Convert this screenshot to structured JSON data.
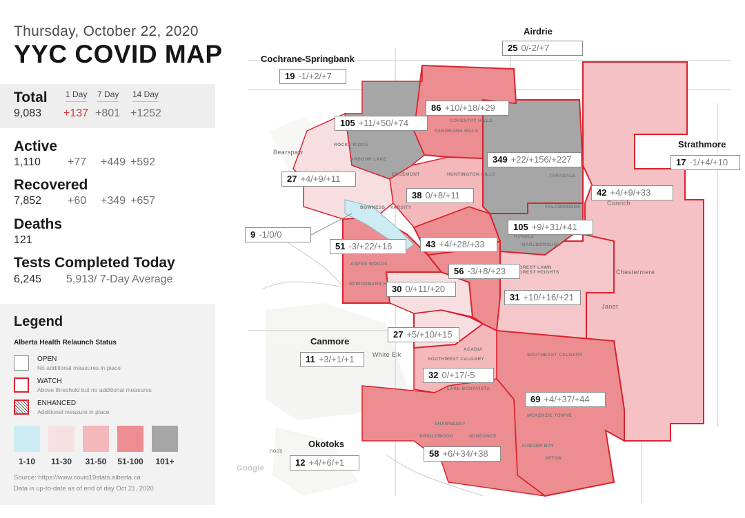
{
  "header": {
    "date": "Thursday, October 22, 2020",
    "title": "YYC COVID MAP"
  },
  "stats": {
    "headers": [
      "1 Day",
      "7 Day",
      "14 Day"
    ],
    "total": {
      "label": "Total",
      "value": "9,083",
      "d1": "+137",
      "d7": "+801",
      "d14": "+1252"
    },
    "active": {
      "label": "Active",
      "value": "1,110",
      "d1": "+77",
      "d7": "+449",
      "d14": "+592"
    },
    "recovered": {
      "label": "Recovered",
      "value": "7,852",
      "d1": "+60",
      "d7": "+349",
      "d14": "+657"
    },
    "deaths": {
      "label": "Deaths",
      "value": "121"
    },
    "tests": {
      "label": "Tests Completed Today",
      "value": "6,245",
      "average": "5,913/ 7-Day Average"
    }
  },
  "legend": {
    "title": "Legend",
    "subtitle": "Alberta Health Relaunch Status",
    "statuses": [
      {
        "name": "OPEN",
        "desc": "No additional measures in place"
      },
      {
        "name": "WATCH",
        "desc": "Above threshold but no additional measures"
      },
      {
        "name": "ENHANCED",
        "desc": "Additional measure in place"
      }
    ],
    "scale": [
      {
        "label": "1-10",
        "color": "#cdebf2"
      },
      {
        "label": "11-30",
        "color": "#f7e0e2"
      },
      {
        "label": "31-50",
        "color": "#f4b7ba"
      },
      {
        "label": "51-100",
        "color": "#ec8d91"
      },
      {
        "label": "101+",
        "color": "#a6a6a6"
      }
    ],
    "source": "Source: https://www.covid19stats.alberta.ca",
    "updated": "Data is up-to-date as of end of day Oct 21, 2020"
  },
  "colors": {
    "watch_border": "#d9232e",
    "highlight": "#d6303a"
  },
  "towns": {
    "airdrie": "Airdrie",
    "cochrane": "Cochrane-Springbank",
    "strathmore": "Strathmore",
    "canmore": "Canmore",
    "okotoks": "Okotoks"
  },
  "areas": [
    {
      "id": "airdrie",
      "active": "25",
      "changes": "0/-2/+7"
    },
    {
      "id": "cochrane",
      "active": "19",
      "changes": "-1/+2/+7"
    },
    {
      "id": "a86",
      "active": "86",
      "changes": "+10/+18/+29"
    },
    {
      "id": "a105nw",
      "active": "105",
      "changes": "+11/+50/+74"
    },
    {
      "id": "a349",
      "active": "349",
      "changes": "+22/+156/+227"
    },
    {
      "id": "strathmore",
      "active": "17",
      "changes": "-1/+4/+10"
    },
    {
      "id": "a27w",
      "active": "27",
      "changes": "+4/+9/+11"
    },
    {
      "id": "a38",
      "active": "38",
      "changes": "0/+8/+11"
    },
    {
      "id": "a42",
      "active": "42",
      "changes": "+4/+9/+33"
    },
    {
      "id": "a9",
      "active": "9",
      "changes": "-1/0/0"
    },
    {
      "id": "a105ne",
      "active": "105",
      "changes": "+9/+31/+41"
    },
    {
      "id": "a51",
      "active": "51",
      "changes": "-3/+22/+16"
    },
    {
      "id": "a43",
      "active": "43",
      "changes": "+4/+28/+33"
    },
    {
      "id": "a56",
      "active": "56",
      "changes": "-3/+8/+23"
    },
    {
      "id": "a30",
      "active": "30",
      "changes": "0/+11/+20"
    },
    {
      "id": "a31",
      "active": "31",
      "changes": "+10/+16/+21"
    },
    {
      "id": "a27s",
      "active": "27",
      "changes": "+5/+10/+15"
    },
    {
      "id": "canmore",
      "active": "11",
      "changes": "+3/+1/+1"
    },
    {
      "id": "a32",
      "active": "32",
      "changes": "0/+17/-5"
    },
    {
      "id": "a69",
      "active": "69",
      "changes": "+4/+37/+44"
    },
    {
      "id": "okotoks",
      "active": "12",
      "changes": "+4/+6/+1"
    },
    {
      "id": "a58",
      "active": "58",
      "changes": "+6/+34/+38"
    }
  ],
  "map_labels": {
    "coventry": "COVENTRY HILLS",
    "panorama": "PANORAMA HILLS",
    "rocky": "ROCKY RIDGE",
    "arbour": "ARBOUR LAKE",
    "edgemont": "EDGEMONT",
    "huntington": "HUNTINGTON HILLS",
    "taradale": "TARADALE",
    "falconridge": "FALCONRIDGE",
    "bowness": "BOWNESS",
    "varsity": "VARSITY",
    "rundle": "RUNDLE",
    "marlborough": "MARLBOROUGH",
    "forest": "FOREST LAWN FOREST HEIGHTS",
    "aspen": "ASPEN WOODS",
    "springbank": "SPRINGBANK HILL",
    "acadia": "ACADIA",
    "southwest": "SOUTHWEST CALGARY",
    "southeast": "SOUTHEAST CALGARY",
    "bonavista": "LAKE BONAVISTA",
    "shawnessy": "SHAWNESSY",
    "bridlewood": "BRIDLEWOOD",
    "sundance": "SUNDANCE",
    "mckenzie": "MCKENZIE TOWNE",
    "seton": "SETON",
    "auburn": "AUBURN BAY",
    "conrich": "Conrich",
    "chestermere": "Chestermere",
    "janet": "Janet",
    "whiteelk": "White Elk",
    "bearspaw": "Bearspaw",
    "google": "Google",
    "nods": "nods"
  }
}
